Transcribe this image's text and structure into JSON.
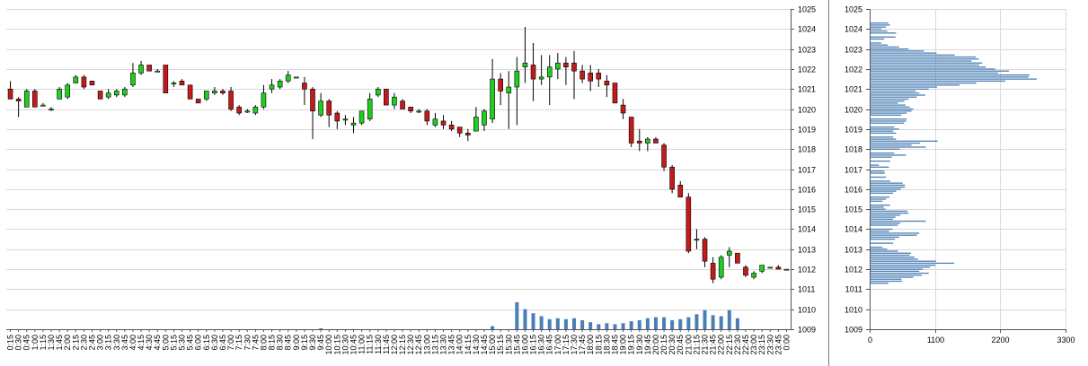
{
  "chart_data": [
    {
      "type": "candlestick",
      "ylim": [
        1009,
        1025
      ],
      "yticks": [
        1009,
        1010,
        1011,
        1012,
        1013,
        1014,
        1015,
        1016,
        1017,
        1018,
        1019,
        1020,
        1021,
        1022,
        1023,
        1024,
        1025
      ],
      "grid": true,
      "times": [
        "0:15",
        "0:30",
        "0:45",
        "1:00",
        "1:15",
        "1:30",
        "1:45",
        "2:00",
        "2:15",
        "2:30",
        "2:45",
        "3:00",
        "3:15",
        "3:30",
        "3:45",
        "4:00",
        "4:15",
        "4:30",
        "4:45",
        "5:00",
        "5:15",
        "5:30",
        "5:45",
        "6:00",
        "6:15",
        "6:30",
        "6:45",
        "7:00",
        "7:15",
        "7:30",
        "7:45",
        "8:00",
        "8:15",
        "8:30",
        "8:45",
        "9:00",
        "9:15",
        "9:30",
        "9:45",
        "10:00",
        "10:15",
        "10:30",
        "10:45",
        "11:00",
        "11:15",
        "11:30",
        "11:45",
        "12:00",
        "12:15",
        "12:30",
        "12:45",
        "13:00",
        "13:15",
        "13:30",
        "13:45",
        "14:00",
        "14:15",
        "14:30",
        "14:45",
        "15:00",
        "15:15",
        "15:30",
        "15:45",
        "16:00",
        "16:15",
        "16:30",
        "16:45",
        "17:00",
        "17:15",
        "17:30",
        "17:45",
        "18:00",
        "18:15",
        "18:30",
        "18:45",
        "19:00",
        "19:15",
        "19:30",
        "19:45",
        "20:00",
        "20:15",
        "20:30",
        "20:45",
        "21:00",
        "21:15",
        "21:30",
        "21:45",
        "22:00",
        "22:15",
        "22:30",
        "22:45",
        "23:00",
        "23:15",
        "23:30",
        "23:45",
        "0:00"
      ],
      "ohlc": [
        [
          1021.0,
          1021.4,
          1020.5,
          1020.5
        ],
        [
          1020.5,
          1020.6,
          1019.6,
          1020.4
        ],
        [
          1020.1,
          1021.0,
          1020.1,
          1020.9
        ],
        [
          1020.9,
          1021.0,
          1020.1,
          1020.1
        ],
        [
          1020.2,
          1020.3,
          1020.2,
          1020.2
        ],
        [
          1020.0,
          1020.1,
          1019.9,
          1020.0
        ],
        [
          1020.5,
          1021.1,
          1020.5,
          1021.0
        ],
        [
          1020.6,
          1021.3,
          1020.5,
          1021.2
        ],
        [
          1021.3,
          1021.7,
          1021.3,
          1021.6
        ],
        [
          1021.6,
          1021.7,
          1021.0,
          1021.1
        ],
        [
          1021.4,
          1021.4,
          1021.2,
          1021.2
        ],
        [
          1020.9,
          1020.9,
          1020.5,
          1020.5
        ],
        [
          1020.6,
          1021.0,
          1020.5,
          1020.8
        ],
        [
          1020.7,
          1021.0,
          1020.6,
          1020.9
        ],
        [
          1020.7,
          1021.1,
          1020.6,
          1021.0
        ],
        [
          1021.2,
          1022.3,
          1021.1,
          1021.8
        ],
        [
          1021.8,
          1022.4,
          1021.7,
          1022.2
        ],
        [
          1022.2,
          1022.2,
          1021.9,
          1021.9
        ],
        [
          1021.9,
          1022.0,
          1021.9,
          1021.9
        ],
        [
          1022.2,
          1022.2,
          1020.8,
          1020.8
        ],
        [
          1021.3,
          1021.4,
          1021.1,
          1021.3
        ],
        [
          1021.4,
          1021.5,
          1021.2,
          1021.2
        ],
        [
          1021.2,
          1021.2,
          1020.5,
          1020.5
        ],
        [
          1020.5,
          1020.5,
          1020.3,
          1020.3
        ],
        [
          1020.5,
          1020.9,
          1020.4,
          1020.9
        ],
        [
          1020.8,
          1021.1,
          1020.7,
          1020.9
        ],
        [
          1020.9,
          1021.0,
          1020.7,
          1020.8
        ],
        [
          1020.9,
          1021.1,
          1019.9,
          1020.0
        ],
        [
          1020.1,
          1020.2,
          1019.7,
          1019.8
        ],
        [
          1019.9,
          1020.0,
          1019.8,
          1019.9
        ],
        [
          1019.8,
          1020.2,
          1019.7,
          1020.1
        ],
        [
          1020.1,
          1021.2,
          1020.0,
          1020.8
        ],
        [
          1021.0,
          1021.5,
          1020.8,
          1021.2
        ],
        [
          1021.1,
          1021.5,
          1021.0,
          1021.4
        ],
        [
          1021.4,
          1021.9,
          1021.3,
          1021.7
        ],
        [
          1021.6,
          1021.6,
          1021.6,
          1021.6
        ],
        [
          1021.3,
          1021.6,
          1020.2,
          1021.0
        ],
        [
          1021.0,
          1021.1,
          1018.5,
          1019.9
        ],
        [
          1019.7,
          1020.8,
          1019.6,
          1020.4
        ],
        [
          1020.4,
          1020.5,
          1019.1,
          1019.7
        ],
        [
          1019.8,
          1019.9,
          1019.0,
          1019.4
        ],
        [
          1019.5,
          1019.7,
          1019.2,
          1019.5
        ],
        [
          1019.2,
          1019.6,
          1018.8,
          1019.3
        ],
        [
          1019.3,
          1019.9,
          1019.2,
          1019.9
        ],
        [
          1019.5,
          1020.8,
          1019.4,
          1020.5
        ],
        [
          1020.7,
          1021.1,
          1020.6,
          1021.0
        ],
        [
          1021.0,
          1021.0,
          1020.2,
          1020.2
        ],
        [
          1020.2,
          1020.8,
          1020.0,
          1020.6
        ],
        [
          1020.4,
          1020.5,
          1020.0,
          1020.0
        ],
        [
          1020.1,
          1020.1,
          1019.8,
          1019.9
        ],
        [
          1019.9,
          1020.0,
          1019.8,
          1019.9
        ],
        [
          1019.9,
          1020.0,
          1019.2,
          1019.4
        ],
        [
          1019.2,
          1019.8,
          1019.1,
          1019.5
        ],
        [
          1019.4,
          1019.7,
          1019.0,
          1019.2
        ],
        [
          1019.2,
          1019.4,
          1018.9,
          1019.0
        ],
        [
          1019.1,
          1019.1,
          1018.6,
          1018.8
        ],
        [
          1018.8,
          1019.0,
          1018.4,
          1018.7
        ],
        [
          1018.9,
          1020.1,
          1018.9,
          1019.6
        ],
        [
          1019.2,
          1020.0,
          1018.9,
          1019.9
        ],
        [
          1019.5,
          1022.5,
          1019.3,
          1021.5
        ],
        [
          1021.5,
          1021.8,
          1020.2,
          1020.9
        ],
        [
          1020.8,
          1021.9,
          1019.0,
          1021.1
        ],
        [
          1021.1,
          1022.6,
          1019.2,
          1021.9
        ],
        [
          1022.1,
          1024.1,
          1021.3,
          1022.3
        ],
        [
          1022.2,
          1023.3,
          1020.4,
          1021.5
        ],
        [
          1021.5,
          1022.7,
          1021.2,
          1021.6
        ],
        [
          1021.6,
          1022.7,
          1020.2,
          1022.1
        ],
        [
          1022.0,
          1022.8,
          1021.5,
          1022.3
        ],
        [
          1022.3,
          1022.6,
          1021.2,
          1022.1
        ],
        [
          1022.3,
          1022.9,
          1020.5,
          1021.9
        ],
        [
          1021.9,
          1022.2,
          1021.3,
          1021.5
        ],
        [
          1021.8,
          1022.2,
          1020.9,
          1021.4
        ],
        [
          1021.8,
          1022.0,
          1021.1,
          1021.5
        ],
        [
          1021.4,
          1021.7,
          1020.6,
          1021.2
        ],
        [
          1021.3,
          1021.3,
          1020.3,
          1020.3
        ],
        [
          1020.2,
          1020.5,
          1019.5,
          1019.8
        ],
        [
          1019.6,
          1019.6,
          1018.1,
          1018.3
        ],
        [
          1018.4,
          1019.0,
          1017.9,
          1018.3
        ],
        [
          1018.3,
          1018.6,
          1017.9,
          1018.5
        ],
        [
          1018.5,
          1018.6,
          1018.3,
          1018.3
        ],
        [
          1018.2,
          1018.3,
          1016.9,
          1017.1
        ],
        [
          1017.1,
          1017.2,
          1015.8,
          1016.0
        ],
        [
          1016.2,
          1016.4,
          1015.7,
          1015.6
        ],
        [
          1015.6,
          1015.8,
          1012.8,
          1012.9
        ],
        [
          1013.5,
          1014.0,
          1013.0,
          1013.5
        ],
        [
          1013.5,
          1013.6,
          1012.1,
          1012.4
        ],
        [
          1012.3,
          1012.6,
          1011.3,
          1011.5
        ],
        [
          1011.6,
          1012.7,
          1011.5,
          1012.6
        ],
        [
          1012.7,
          1013.1,
          1012.1,
          1012.9
        ],
        [
          1012.8,
          1012.8,
          1012.3,
          1012.3
        ],
        [
          1012.1,
          1012.2,
          1011.6,
          1011.7
        ],
        [
          1011.6,
          1011.9,
          1011.5,
          1011.8
        ],
        [
          1011.9,
          1012.2,
          1011.8,
          1012.2
        ],
        [
          1012.1,
          1012.1,
          1012.1,
          1012.1
        ],
        [
          1012.1,
          1012.2,
          1012.0,
          1012.0
        ],
        [
          1012.0,
          1012.0,
          1012.0,
          1012.0
        ]
      ],
      "volume": [
        0,
        0,
        0,
        0,
        0,
        0,
        0,
        0,
        0,
        0,
        0,
        0,
        0,
        0,
        0,
        0,
        0,
        0,
        0,
        0,
        0,
        0,
        0,
        0,
        0,
        0,
        0,
        0,
        0,
        0,
        0,
        0,
        0,
        0,
        0,
        0,
        0,
        0,
        0.05,
        0,
        0,
        0,
        0,
        0,
        0,
        0,
        0,
        0,
        0,
        0,
        0,
        0,
        0,
        0,
        0,
        0,
        0,
        0,
        0,
        0.15,
        0,
        0,
        1.35,
        1.0,
        0.8,
        0.65,
        0.5,
        0.55,
        0.5,
        0.55,
        0.45,
        0.35,
        0.25,
        0.3,
        0.25,
        0.3,
        0.4,
        0.45,
        0.55,
        0.6,
        0.6,
        0.45,
        0.5,
        0.6,
        0.75,
        0.95,
        0.7,
        0.65,
        0.95,
        0.55,
        0,
        0,
        0,
        0,
        0,
        0
      ],
      "bullish_color": "#1ecf1e",
      "bearish_color": "#c41a1a",
      "volume_color": "#4a7fb5"
    },
    {
      "type": "bar",
      "orientation": "horizontal",
      "title_note": "Volume profile",
      "xticks": [
        0,
        1100,
        2200,
        3300
      ],
      "xlim": [
        0,
        3300
      ],
      "ylim": [
        1009,
        1025
      ],
      "yticks": [
        1009,
        1010,
        1011,
        1012,
        1013,
        1014,
        1015,
        1016,
        1017,
        1018,
        1019,
        1020,
        1021,
        1022,
        1023,
        1024,
        1025
      ],
      "grid": true,
      "bar_color": "#4a7fb5",
      "levels": [
        [
          1024.3,
          300
        ],
        [
          1024.2,
          330
        ],
        [
          1024.1,
          260
        ],
        [
          1024.0,
          180
        ],
        [
          1023.9,
          280
        ],
        [
          1023.8,
          430
        ],
        [
          1023.6,
          420
        ],
        [
          1023.5,
          230
        ],
        [
          1023.3,
          180
        ],
        [
          1023.2,
          290
        ],
        [
          1023.1,
          480
        ],
        [
          1023.0,
          640
        ],
        [
          1022.9,
          900
        ],
        [
          1022.8,
          1110
        ],
        [
          1022.7,
          1420
        ],
        [
          1022.6,
          1770
        ],
        [
          1022.5,
          1820
        ],
        [
          1022.4,
          1700
        ],
        [
          1022.3,
          1880
        ],
        [
          1022.2,
          1830
        ],
        [
          1022.1,
          1940
        ],
        [
          1022.0,
          2100
        ],
        [
          1021.9,
          2330
        ],
        [
          1021.8,
          2150
        ],
        [
          1021.7,
          2680
        ],
        [
          1021.6,
          2660
        ],
        [
          1021.5,
          2800
        ],
        [
          1021.4,
          2270
        ],
        [
          1021.3,
          1780
        ],
        [
          1021.2,
          1500
        ],
        [
          1021.1,
          1120
        ],
        [
          1021.0,
          980
        ],
        [
          1020.9,
          760
        ],
        [
          1020.8,
          820
        ],
        [
          1020.7,
          920
        ],
        [
          1020.6,
          780
        ],
        [
          1020.5,
          640
        ],
        [
          1020.4,
          570
        ],
        [
          1020.3,
          460
        ],
        [
          1020.2,
          590
        ],
        [
          1020.1,
          660
        ],
        [
          1020.0,
          720
        ],
        [
          1019.9,
          690
        ],
        [
          1019.8,
          610
        ],
        [
          1019.7,
          520
        ],
        [
          1019.5,
          610
        ],
        [
          1019.4,
          600
        ],
        [
          1019.3,
          560
        ],
        [
          1019.1,
          400
        ],
        [
          1019.0,
          480
        ],
        [
          1018.9,
          380
        ],
        [
          1018.8,
          430
        ],
        [
          1018.6,
          380
        ],
        [
          1018.5,
          430
        ],
        [
          1018.4,
          1130
        ],
        [
          1018.3,
          830
        ],
        [
          1018.2,
          690
        ],
        [
          1018.1,
          930
        ],
        [
          1018.0,
          490
        ],
        [
          1017.8,
          400
        ],
        [
          1017.7,
          600
        ],
        [
          1017.6,
          360
        ],
        [
          1017.4,
          330
        ],
        [
          1017.2,
          140
        ],
        [
          1017.1,
          310
        ],
        [
          1016.9,
          230
        ],
        [
          1016.8,
          240
        ],
        [
          1016.6,
          260
        ],
        [
          1016.4,
          330
        ],
        [
          1016.3,
          540
        ],
        [
          1016.2,
          580
        ],
        [
          1016.1,
          580
        ],
        [
          1016.0,
          510
        ],
        [
          1015.9,
          430
        ],
        [
          1015.8,
          380
        ],
        [
          1015.6,
          320
        ],
        [
          1015.5,
          260
        ],
        [
          1015.4,
          200
        ],
        [
          1015.2,
          330
        ],
        [
          1015.1,
          220
        ],
        [
          1015.0,
          250
        ],
        [
          1014.9,
          620
        ],
        [
          1014.8,
          640
        ],
        [
          1014.7,
          500
        ],
        [
          1014.6,
          420
        ],
        [
          1014.5,
          380
        ],
        [
          1014.4,
          930
        ],
        [
          1014.3,
          500
        ],
        [
          1014.2,
          460
        ],
        [
          1014.0,
          370
        ],
        [
          1013.9,
          310
        ],
        [
          1013.8,
          820
        ],
        [
          1013.7,
          780
        ],
        [
          1013.6,
          480
        ],
        [
          1013.5,
          410
        ],
        [
          1013.3,
          380
        ],
        [
          1013.1,
          200
        ],
        [
          1013.0,
          280
        ],
        [
          1012.9,
          460
        ],
        [
          1012.8,
          680
        ],
        [
          1012.7,
          660
        ],
        [
          1012.6,
          740
        ],
        [
          1012.5,
          800
        ],
        [
          1012.4,
          1100
        ],
        [
          1012.3,
          1410
        ],
        [
          1012.2,
          1090
        ],
        [
          1012.1,
          1000
        ],
        [
          1012.0,
          880
        ],
        [
          1011.9,
          820
        ],
        [
          1011.8,
          980
        ],
        [
          1011.7,
          860
        ],
        [
          1011.6,
          720
        ],
        [
          1011.5,
          520
        ],
        [
          1011.4,
          530
        ],
        [
          1011.3,
          300
        ]
      ]
    }
  ]
}
